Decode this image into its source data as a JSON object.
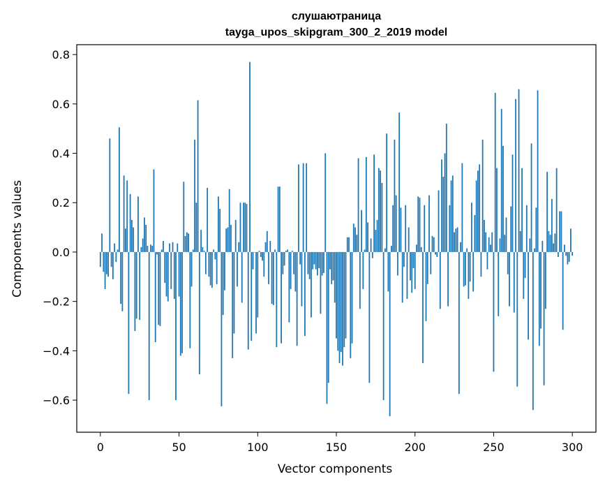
{
  "chart_data": {
    "type": "bar",
    "title": "слушаютраница",
    "subtitle": "tayga_upos_skipgram_300_2_2019 model",
    "xlabel": "Vector components",
    "ylabel": "Components values",
    "xlim": [
      -15,
      315
    ],
    "ylim": [
      -0.73,
      0.84
    ],
    "xticks": [
      0,
      50,
      100,
      150,
      200,
      250,
      300
    ],
    "xtick_labels": [
      "0",
      "50",
      "100",
      "150",
      "200",
      "250",
      "300"
    ],
    "yticks": [
      -0.6,
      -0.4,
      -0.2,
      0.0,
      0.2,
      0.4,
      0.6,
      0.8
    ],
    "ytick_labels": [
      "−0.6",
      "−0.4",
      "−0.2",
      "0.0",
      "0.2",
      "0.4",
      "0.6",
      "0.8"
    ],
    "grid": false,
    "legend": "none",
    "bar_color": "#1f77b4",
    "values": [
      -0.06,
      0.075,
      -0.08,
      -0.15,
      -0.09,
      -0.1,
      0.46,
      -0.06,
      -0.11,
      0.035,
      -0.04,
      0.01,
      0.505,
      -0.21,
      -0.24,
      0.31,
      0.095,
      0.29,
      -0.575,
      0.235,
      0.13,
      0.1,
      -0.32,
      -0.27,
      0.225,
      -0.275,
      0.02,
      0.055,
      0.14,
      0.11,
      0.025,
      -0.6,
      0.03,
      0.025,
      0.335,
      -0.365,
      -0.01,
      -0.295,
      -0.3,
      0.01,
      0.045,
      -0.125,
      -0.18,
      -0.2,
      0.035,
      -0.15,
      0.04,
      -0.19,
      -0.6,
      0.035,
      -0.18,
      -0.42,
      -0.41,
      0.285,
      0.065,
      0.08,
      0.075,
      -0.39,
      -0.14,
      0.01,
      0.455,
      0.2,
      0.615,
      -0.495,
      0.09,
      0.02,
      0.005,
      -0.09,
      0.26,
      -0.1,
      -0.135,
      -0.145,
      0.01,
      -0.03,
      -0.13,
      0.225,
      0.175,
      -0.625,
      -0.255,
      -0.155,
      0.095,
      0.1,
      0.255,
      0.11,
      -0.43,
      -0.33,
      0.13,
      -0.14,
      0.04,
      0.2,
      -0.205,
      0.2,
      0.2,
      0.195,
      -0.395,
      0.77,
      -0.36,
      -0.07,
      0.0,
      -0.33,
      -0.265,
      0.005,
      -0.02,
      -0.035,
      -0.1,
      0.04,
      0.085,
      -0.13,
      0.045,
      -0.21,
      -0.215,
      0.01,
      -0.385,
      0.265,
      0.265,
      -0.37,
      -0.09,
      -0.055,
      0.005,
      0.01,
      -0.285,
      -0.15,
      0.005,
      -0.09,
      -0.16,
      -0.38,
      0.355,
      -0.05,
      -0.22,
      0.36,
      -0.34,
      0.36,
      -0.09,
      -0.11,
      -0.265,
      -0.07,
      -0.05,
      -0.07,
      -0.095,
      -0.065,
      -0.25,
      -0.095,
      -0.085,
      0.4,
      -0.615,
      -0.53,
      -0.07,
      -0.13,
      -0.115,
      -0.205,
      -0.35,
      -0.4,
      -0.45,
      -0.405,
      -0.46,
      -0.385,
      -0.35,
      0.06,
      0.06,
      -0.43,
      -0.37,
      0.115,
      0.1,
      0.07,
      0.38,
      -0.23,
      0.17,
      -0.15,
      0.01,
      0.385,
      0.12,
      -0.53,
      0.055,
      -0.025,
      0.395,
      0.09,
      0.13,
      0.34,
      0.33,
      0.28,
      -0.6,
      0.015,
      0.48,
      -0.16,
      -0.665,
      0.025,
      0.19,
      0.455,
      0.23,
      -0.095,
      0.565,
      0.18,
      -0.205,
      -0.06,
      0.19,
      -0.19,
      0.1,
      -0.115,
      -0.165,
      -0.065,
      -0.15,
      0.03,
      0.225,
      0.22,
      0.02,
      -0.45,
      0.19,
      -0.28,
      -0.13,
      0.23,
      -0.09,
      0.065,
      0.06,
      -0.01,
      -0.02,
      0.25,
      -0.23,
      0.375,
      0.305,
      0.4,
      0.52,
      -0.22,
      0.19,
      0.29,
      0.31,
      0.08,
      0.095,
      0.1,
      -0.575,
      0.04,
      0.36,
      -0.14,
      -0.135,
      0.015,
      -0.19,
      -0.12,
      0.2,
      -0.16,
      0.15,
      0.29,
      0.33,
      0.355,
      -0.1,
      0.455,
      0.13,
      0.08,
      -0.07,
      0.06,
      0.03,
      0.08,
      -0.485,
      0.645,
      0.34,
      -0.26,
      0.055,
      0.58,
      0.43,
      0.07,
      0.14,
      -0.09,
      -0.22,
      0.185,
      0.395,
      -0.245,
      0.62,
      -0.545,
      0.66,
      0.085,
      0.34,
      -0.19,
      -0.105,
      0.19,
      -0.355,
      0.055,
      0.44,
      -0.64,
      0.015,
      0.18,
      0.655,
      -0.38,
      -0.31,
      0.045,
      -0.54,
      -0.23,
      0.325,
      0.085,
      0.07,
      0.215,
      0.035,
      0.075,
      0.34,
      -0.02,
      0.165,
      0.165,
      -0.315,
      0.03,
      -0.015,
      -0.05,
      -0.04,
      0.095,
      -0.015
    ]
  }
}
